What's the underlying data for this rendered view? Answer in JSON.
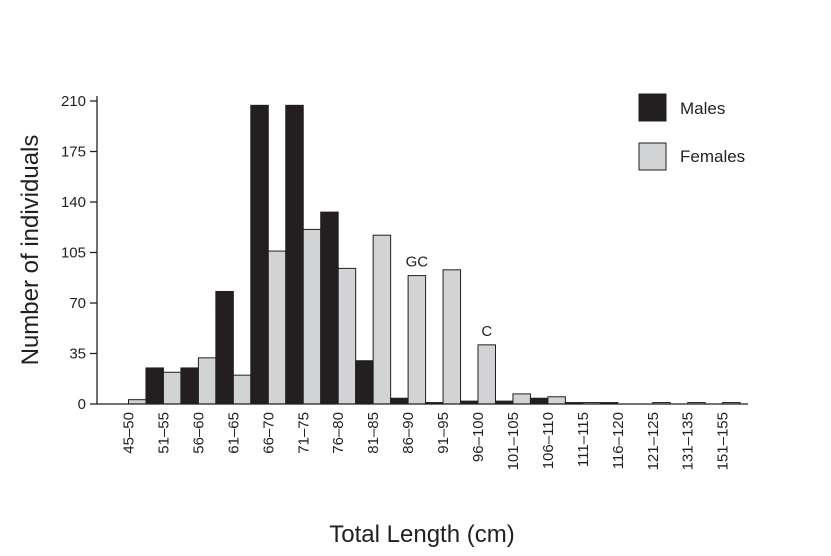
{
  "chart_data": {
    "type": "bar",
    "xlabel": "Total Length (cm)",
    "ylabel": "Number of individuals",
    "ylim": [
      0,
      210
    ],
    "yticks": [
      0,
      35,
      70,
      105,
      140,
      175,
      210
    ],
    "grid": false,
    "legend_position": "top-right",
    "categories": [
      "45–50",
      "51–55",
      "56–60",
      "61–65",
      "66–70",
      "71–75",
      "76–80",
      "81–85",
      "86–90",
      "91–95",
      "96–100",
      "101–105",
      "106–110",
      "111–115",
      "116–120",
      "121–125",
      "131–135",
      "151–155"
    ],
    "series": [
      {
        "name": "Males",
        "color": "#231f20",
        "values": [
          0,
          25,
          25,
          78,
          207,
          207,
          133,
          30,
          4,
          1,
          2,
          2,
          4,
          1,
          1,
          0,
          0,
          0
        ]
      },
      {
        "name": "Females",
        "color": "#d1d3d4",
        "values": [
          3,
          22,
          32,
          20,
          106,
          121,
          94,
          117,
          89,
          93,
          41,
          7,
          5,
          1,
          0,
          1,
          1,
          1
        ]
      }
    ],
    "annotations": [
      {
        "text": "GC",
        "category": "86–90",
        "series": "Females"
      },
      {
        "text": "C",
        "category": "96–100",
        "series": "Females"
      }
    ]
  }
}
